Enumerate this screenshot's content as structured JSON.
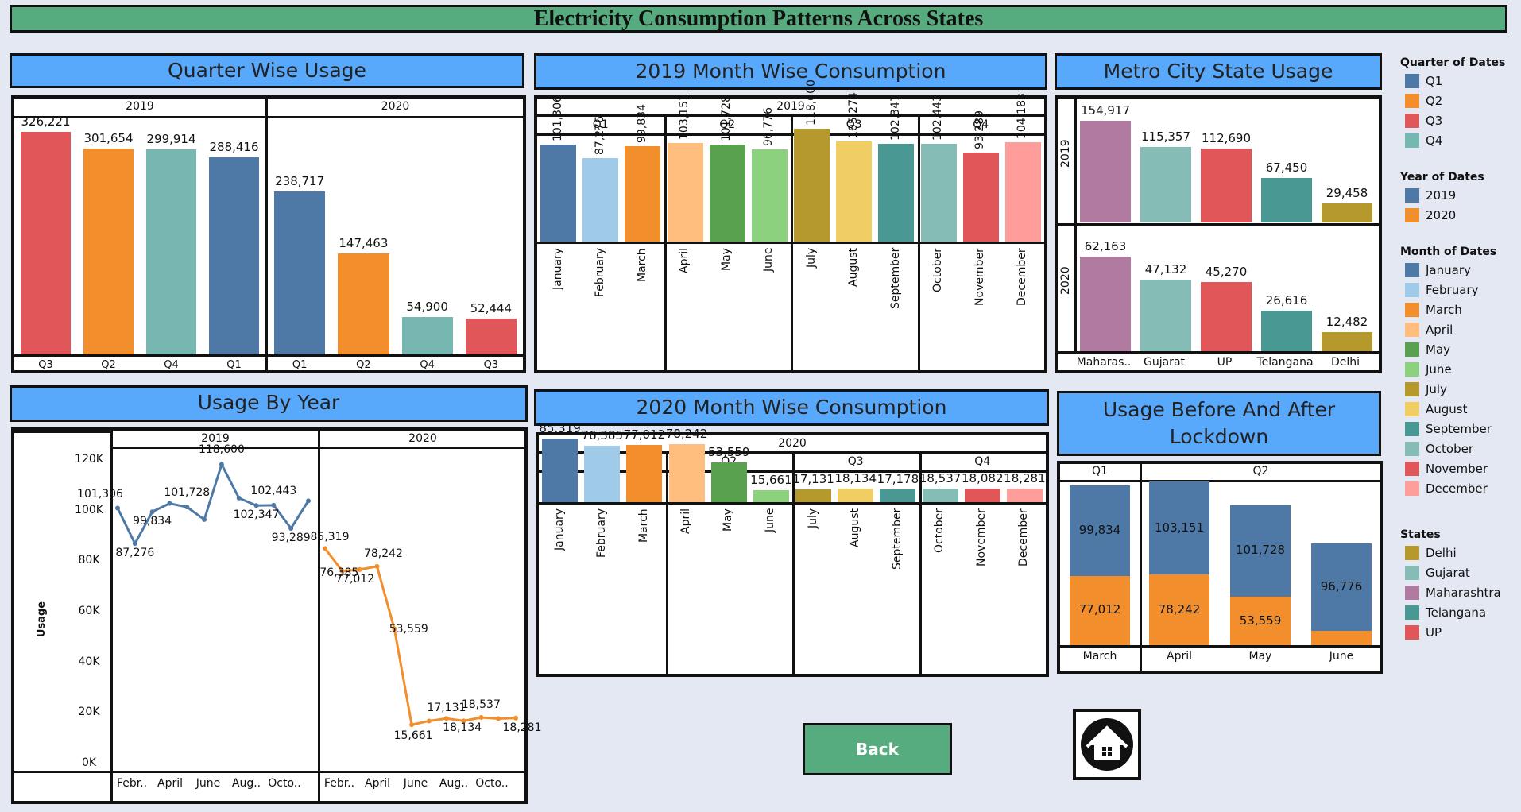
{
  "page_title": "Electricity Consumption Patterns Across States",
  "back_label": "Back",
  "titles": {
    "quarter": "Quarter Wise Usage",
    "month2019": "2019 Month Wise Consumption",
    "metro": "Metro City State Usage",
    "byyear": "Usage By Year",
    "month2020": "2020 Month Wise Consumption",
    "lockdown": "Usage Before And After Lockdown"
  },
  "colors": {
    "Q1": "#4E79A7",
    "Q2": "#F28E2B",
    "Q3": "#E15759",
    "Q4": "#76B7B2",
    "January": "#4E79A7",
    "February": "#A0CBE8",
    "March": "#F28E2B",
    "April": "#FFBE7D",
    "May": "#59A14F",
    "June": "#8CD17D",
    "July": "#B6992D",
    "August": "#F1CE63",
    "September": "#499894",
    "October": "#86BCB6",
    "November": "#E15759",
    "December": "#FF9D9A",
    "Delhi": "#B6992D",
    "Gujarat": "#86BCB6",
    "Maharashtra": "#B07AA1",
    "Telangana": "#499894",
    "UP": "#E15759"
  },
  "legend": {
    "quarter_title": "Quarter of Dates",
    "quarters": [
      "Q1",
      "Q2",
      "Q3",
      "Q4"
    ],
    "year_title": "Year of Dates",
    "years": [
      "2019",
      "2020"
    ],
    "month_title": "Month of Dates",
    "months": [
      "January",
      "February",
      "March",
      "April",
      "May",
      "June",
      "July",
      "August",
      "September",
      "October",
      "November",
      "December"
    ],
    "states_title": "States",
    "states": [
      "Delhi",
      "Gujarat",
      "Maharashtra",
      "Telangana",
      "UP"
    ]
  },
  "chart_data": [
    {
      "id": "quarter",
      "type": "bar",
      "title": "Quarter Wise Usage",
      "panels": [
        {
          "label": "2019",
          "categories": [
            "Q3",
            "Q2",
            "Q4",
            "Q1"
          ],
          "values": [
            326221,
            301654,
            299914,
            288416
          ],
          "value_labels": [
            "326,221",
            "301,654",
            "299,914",
            "288,416"
          ]
        },
        {
          "label": "2020",
          "categories": [
            "Q1",
            "Q2",
            "Q4",
            "Q3"
          ],
          "values": [
            238717,
            147463,
            54900,
            52444
          ],
          "value_labels": [
            "238,717",
            "147,463",
            "54,900",
            "52,444"
          ]
        }
      ],
      "ylim": [
        0,
        340000
      ]
    },
    {
      "id": "month2019",
      "type": "bar",
      "title": "2019 Month Wise Consumption",
      "year": "2019",
      "groups": [
        {
          "label": "Q1",
          "categories": [
            "January",
            "February",
            "March"
          ],
          "values": [
            101306,
            87276,
            99834
          ],
          "value_labels": [
            "101,306",
            "87,276",
            "99,834"
          ]
        },
        {
          "label": "Q2",
          "categories": [
            "April",
            "May",
            "June"
          ],
          "values": [
            103151,
            101728,
            96776
          ],
          "value_labels": [
            "103,151",
            "101,728",
            "96,776"
          ]
        },
        {
          "label": "Q3",
          "categories": [
            "July",
            "August",
            "September"
          ],
          "values": [
            118600,
            105274,
            102347
          ],
          "value_labels": [
            "118,600",
            "105,274",
            "102,347"
          ]
        },
        {
          "label": "Q4",
          "categories": [
            "October",
            "November",
            "December"
          ],
          "values": [
            102443,
            93289,
            104183
          ],
          "value_labels": [
            "102,443",
            "93,289",
            "104,183"
          ]
        }
      ],
      "ylim": [
        0,
        125000
      ]
    },
    {
      "id": "metro",
      "type": "bar",
      "title": "Metro City State Usage",
      "categories": [
        "Maharas..",
        "Gujarat",
        "UP",
        "Telangana",
        "Delhi"
      ],
      "category_keys": [
        "Maharashtra",
        "Gujarat",
        "UP",
        "Telangana",
        "Delhi"
      ],
      "rows": [
        {
          "label": "2019",
          "values": [
            154917,
            115357,
            112690,
            67450,
            29458
          ],
          "value_labels": [
            "154,917",
            "115,357",
            "112,690",
            "67,450",
            "29,458"
          ],
          "ylim": [
            0,
            160000
          ]
        },
        {
          "label": "2020",
          "values": [
            62163,
            47132,
            45270,
            26616,
            12482
          ],
          "value_labels": [
            "62,163",
            "47,132",
            "45,270",
            "26,616",
            "12,482"
          ],
          "ylim": [
            0,
            70000
          ]
        }
      ]
    },
    {
      "id": "byyear",
      "type": "line",
      "title": "Usage By Year",
      "ylabel": "Usage",
      "yticks": [
        "120K",
        "100K",
        "80K",
        "60K",
        "40K",
        "20K",
        "0K"
      ],
      "ylim": [
        0,
        120000
      ],
      "xtick_labels": [
        "Febr..",
        "April",
        "June",
        "Aug..",
        "Octo.."
      ],
      "series": [
        {
          "name": "2019",
          "x": [
            "January",
            "February",
            "March",
            "April",
            "May",
            "June",
            "July",
            "August",
            "September",
            "October",
            "November",
            "December"
          ],
          "values": [
            101306,
            87276,
            99834,
            103151,
            101728,
            96776,
            118600,
            105274,
            102347,
            102443,
            93289,
            104183
          ],
          "value_labels": [
            "101,306",
            "87,276",
            "99,834",
            "",
            "101,728",
            "",
            "118,600",
            "",
            "102,347",
            "102,443",
            "93,289",
            ""
          ]
        },
        {
          "name": "2020",
          "x": [
            "January",
            "February",
            "March",
            "April",
            "May",
            "June",
            "July",
            "August",
            "September",
            "October",
            "November",
            "December"
          ],
          "values": [
            85319,
            76385,
            77012,
            78242,
            53559,
            15661,
            17131,
            18134,
            17178,
            18537,
            18082,
            18281
          ],
          "value_labels": [
            "85,319",
            "76,385",
            "77,012",
            "78,242",
            "53,559",
            "15,661",
            "17,131",
            "18,134",
            "",
            "18,537",
            "",
            "18,281"
          ]
        }
      ]
    },
    {
      "id": "month2020",
      "type": "bar",
      "title": "2020 Month Wise Consumption",
      "year": "2020",
      "groups": [
        {
          "label": "Q1",
          "categories": [
            "January",
            "February",
            "March"
          ],
          "values": [
            85319,
            76385,
            77012
          ],
          "value_labels": [
            "85,319",
            "76,385",
            "77,012"
          ]
        },
        {
          "label": "Q2",
          "categories": [
            "April",
            "May",
            "June"
          ],
          "values": [
            78242,
            53559,
            15661
          ],
          "value_labels": [
            "78,242",
            "53,559",
            "15,661"
          ]
        },
        {
          "label": "Q3",
          "categories": [
            "July",
            "August",
            "September"
          ],
          "values": [
            17131,
            18134,
            17178
          ],
          "value_labels": [
            "17,131",
            "18,134",
            "17,178"
          ]
        },
        {
          "label": "Q4",
          "categories": [
            "October",
            "November",
            "December"
          ],
          "values": [
            18537,
            18082,
            18281
          ],
          "value_labels": [
            "18,537",
            "18,082",
            "18,281"
          ]
        }
      ],
      "ylim": [
        0,
        90000
      ]
    },
    {
      "id": "lockdown",
      "type": "bar",
      "stacked": true,
      "title": "Usage Before And After Lockdown",
      "groups": [
        {
          "label": "Q1",
          "categories": [
            "March"
          ]
        },
        {
          "label": "Q2",
          "categories": [
            "April",
            "May",
            "June"
          ]
        }
      ],
      "categories": [
        "March",
        "April",
        "May",
        "June"
      ],
      "series": [
        {
          "name": "2020",
          "values": [
            77012,
            78242,
            53559,
            15661
          ],
          "value_labels": [
            "77,012",
            "78,242",
            "53,559",
            ""
          ]
        },
        {
          "name": "2019",
          "values": [
            99834,
            103151,
            101728,
            96776
          ],
          "value_labels": [
            "99,834",
            "103,151",
            "101,728",
            "96,776"
          ]
        }
      ],
      "ylim": [
        0,
        185000
      ]
    }
  ]
}
